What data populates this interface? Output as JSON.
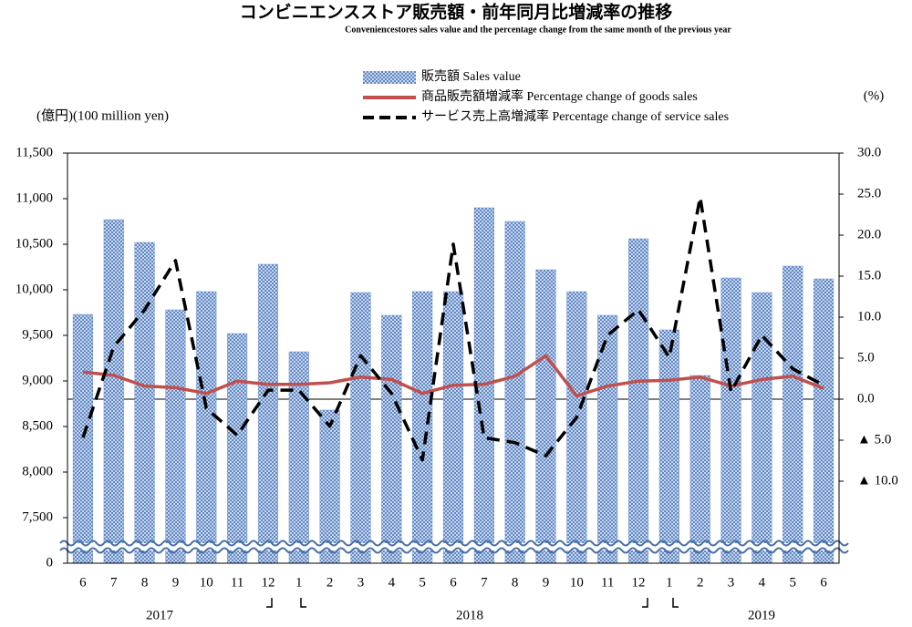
{
  "chart_data": {
    "type": "bar_line",
    "title": "コンビニエンスストア販売額・前年同月比増減率の推移",
    "subtitle": "Conveniencestores sales value and the percentage change from the same month of the previous year",
    "y_label": "(億円)(100 million yen)",
    "y2_label": "(%)",
    "categories": [
      "6",
      "7",
      "8",
      "9",
      "10",
      "11",
      "12",
      "1",
      "2",
      "3",
      "4",
      "5",
      "6",
      "7",
      "8",
      "9",
      "10",
      "11",
      "12",
      "1",
      "2",
      "3",
      "4",
      "5",
      "6"
    ],
    "years": [
      "2017",
      "2018",
      "2019"
    ],
    "ylim": [
      0,
      11500
    ],
    "yticks": [
      0,
      {
        "value": 7500,
        "label": "7,500"
      },
      {
        "value": 8000,
        "label": "8,000"
      },
      {
        "value": 8500,
        "label": "8,500"
      },
      {
        "value": 9000,
        "label": "9,000"
      },
      {
        "value": 9500,
        "label": "9,500"
      },
      {
        "value": 10000,
        "label": "10,000"
      },
      {
        "value": 10500,
        "label": "10,500"
      },
      {
        "value": 11000,
        "label": "11,000"
      },
      {
        "value": 11500,
        "label": "11,500"
      }
    ],
    "y2lim": [
      -20,
      30
    ],
    "y2ticks": [
      {
        "value": -10,
        "label": "▲ 10.0"
      },
      {
        "value": -5,
        "label": "▲ 5.0"
      },
      {
        "value": 0,
        "label": "0.0"
      },
      {
        "value": 5,
        "label": "5.0"
      },
      {
        "value": 10,
        "label": "10.0"
      },
      {
        "value": 15,
        "label": "15.0"
      },
      {
        "value": 20,
        "label": "20.0"
      },
      {
        "value": 25,
        "label": "25.0"
      },
      {
        "value": 30,
        "label": "30.0"
      }
    ],
    "series": [
      {
        "name": "販売額 Sales value",
        "type": "bar",
        "color": "#6f95cf",
        "values": [
          9730,
          10770,
          10520,
          9780,
          9980,
          9520,
          10280,
          9320,
          8680,
          9970,
          9720,
          9980,
          9980,
          10900,
          10750,
          10220,
          9980,
          9720,
          10560,
          9560,
          9060,
          10130,
          9970,
          10260,
          10120
        ]
      },
      {
        "name": "商品販売額増減率 Percentage change of goods sales",
        "type": "line",
        "axis": "y2",
        "color": "#c0504d",
        "dash": false,
        "values": [
          3.3,
          2.9,
          1.6,
          1.4,
          0.7,
          2.2,
          1.8,
          1.8,
          2.0,
          2.7,
          2.4,
          0.7,
          1.7,
          1.8,
          2.8,
          5.3,
          0.4,
          1.6,
          2.2,
          2.3,
          2.7,
          1.6,
          2.4,
          2.8,
          1.3
        ]
      },
      {
        "name": "サービス売上高増減率 Percentage change of service sales",
        "type": "line",
        "axis": "y2",
        "color": "#000000",
        "dash": true,
        "values": [
          -4.7,
          6.4,
          10.9,
          16.9,
          -1.1,
          -4.4,
          1.1,
          1.1,
          -3.3,
          5.3,
          0.7,
          -7.4,
          18.9,
          -4.7,
          -5.3,
          -6.9,
          -2.2,
          7.8,
          10.9,
          5.1,
          24.6,
          0.9,
          7.8,
          3.7,
          1.7
        ]
      }
    ]
  }
}
